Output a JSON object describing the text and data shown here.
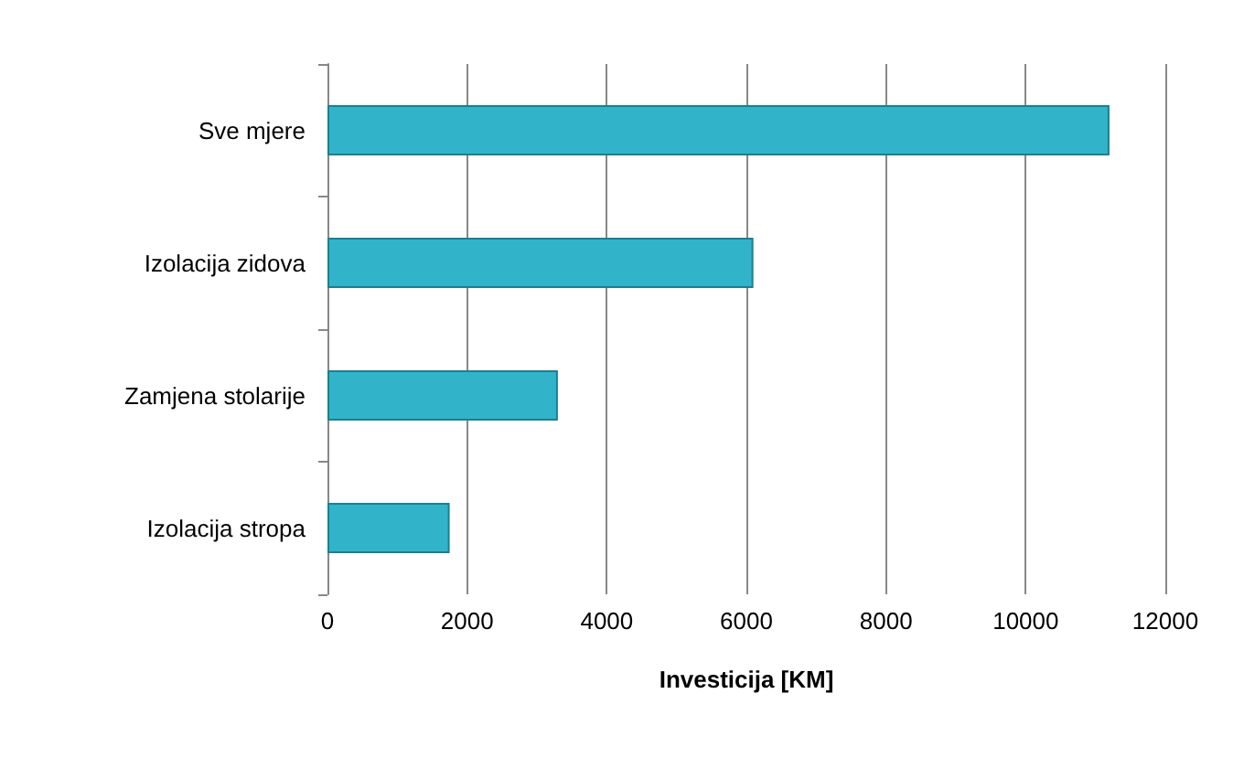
{
  "chart_data": {
    "type": "bar",
    "orientation": "horizontal",
    "xlabel": "Investicija [KM]",
    "categories": [
      "Sve mjere",
      "Izolacija zidova",
      "Zamjena stolarije",
      "Izolacija stropa"
    ],
    "values": [
      11200,
      6100,
      3300,
      1750
    ],
    "color": "#31b4c9",
    "xlim": [
      0,
      12000
    ],
    "xticks": [
      0,
      2000,
      4000,
      6000,
      8000,
      10000,
      12000
    ],
    "grid": "x"
  }
}
